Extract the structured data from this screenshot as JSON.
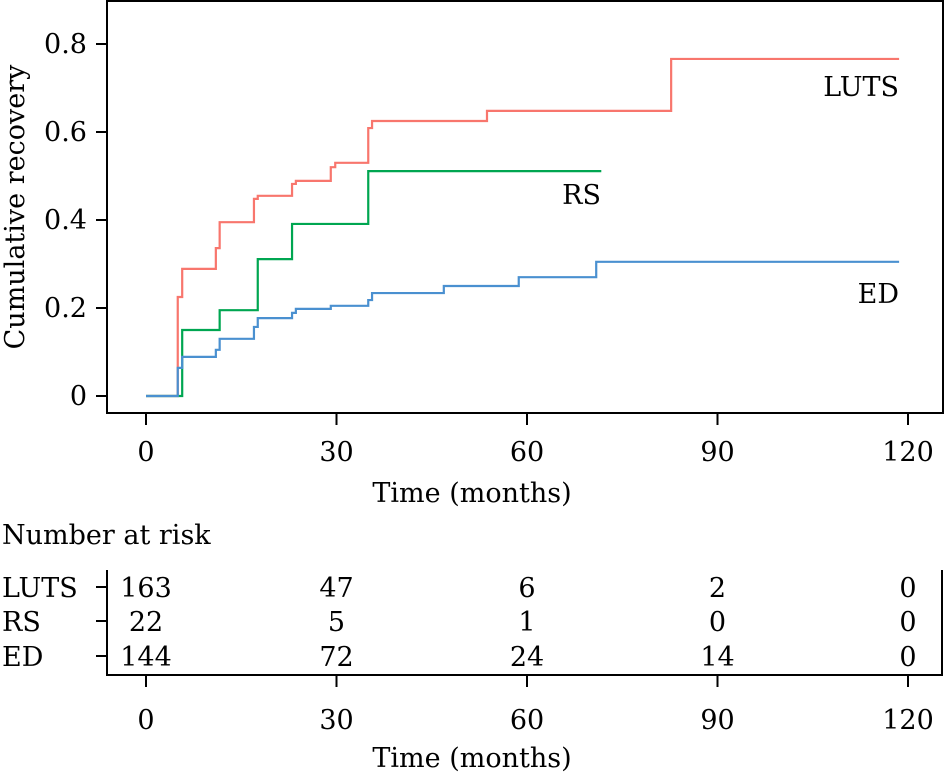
{
  "chart_data": {
    "type": "line",
    "subtype": "step (Kaplan-Meier cumulative incidence)",
    "title": "",
    "xlabel": "Time (months)",
    "ylabel": "Cumulative recovery",
    "xlim": [
      0,
      120
    ],
    "ylim": [
      0,
      0.8
    ],
    "x_ticks": [
      0,
      30,
      60,
      90,
      120
    ],
    "x_tick_labels": [
      "0",
      "30",
      "60",
      "90",
      "120"
    ],
    "y_ticks": [
      0,
      0.2,
      0.4,
      0.6,
      0.8
    ],
    "y_tick_labels": [
      "0",
      "0.2",
      "0.4",
      "0.6",
      "0.8"
    ],
    "grid": false,
    "legend": "inline labels at right end of each curve",
    "series": [
      {
        "name": "LUTS",
        "color": "#F8766D",
        "label_position": "right, above curve end",
        "steps": [
          [
            0,
            0
          ],
          [
            5.0,
            0.225
          ],
          [
            5.7,
            0.289
          ],
          [
            11.0,
            0.336
          ],
          [
            11.6,
            0.395
          ],
          [
            17.0,
            0.448
          ],
          [
            17.6,
            0.455
          ],
          [
            23.0,
            0.482
          ],
          [
            23.6,
            0.489
          ],
          [
            29.1,
            0.52
          ],
          [
            29.8,
            0.53
          ],
          [
            35.0,
            0.609
          ],
          [
            35.6,
            0.625
          ],
          [
            53.7,
            0.648
          ],
          [
            82.7,
            0.766
          ]
        ],
        "end_time": 118.6
      },
      {
        "name": "RS",
        "color": "#00A651",
        "label_position": "right, below curve end",
        "steps": [
          [
            0,
            0
          ],
          [
            5.7,
            0.15
          ],
          [
            11.6,
            0.195
          ],
          [
            17.6,
            0.311
          ],
          [
            23.0,
            0.391
          ],
          [
            35.0,
            0.511
          ]
        ],
        "end_time": 71.7
      },
      {
        "name": "ED",
        "color": "#4A90D0",
        "label_position": "right, below curve end",
        "steps": [
          [
            0,
            0
          ],
          [
            5.0,
            0.064
          ],
          [
            5.7,
            0.089
          ],
          [
            11.0,
            0.105
          ],
          [
            11.6,
            0.13
          ],
          [
            17.0,
            0.157
          ],
          [
            17.6,
            0.177
          ],
          [
            23.0,
            0.189
          ],
          [
            23.6,
            0.198
          ],
          [
            29.1,
            0.205
          ],
          [
            35.0,
            0.218
          ],
          [
            35.6,
            0.234
          ],
          [
            46.9,
            0.25
          ],
          [
            58.7,
            0.27
          ],
          [
            70.9,
            0.305
          ]
        ],
        "end_time": 118.6
      }
    ],
    "risk_table": {
      "title": "Number at risk",
      "xlabel": "Time (months)",
      "times": [
        0,
        30,
        60,
        90,
        120
      ],
      "time_labels": [
        "0",
        "30",
        "60",
        "90",
        "120"
      ],
      "rows": [
        {
          "group": "LUTS",
          "counts": [
            "163",
            "47",
            "6",
            "2",
            "0"
          ]
        },
        {
          "group": "RS",
          "counts": [
            "22",
            "5",
            "1",
            "0",
            "0"
          ]
        },
        {
          "group": "ED",
          "counts": [
            "144",
            "72",
            "24",
            "14",
            "0"
          ]
        }
      ]
    }
  }
}
